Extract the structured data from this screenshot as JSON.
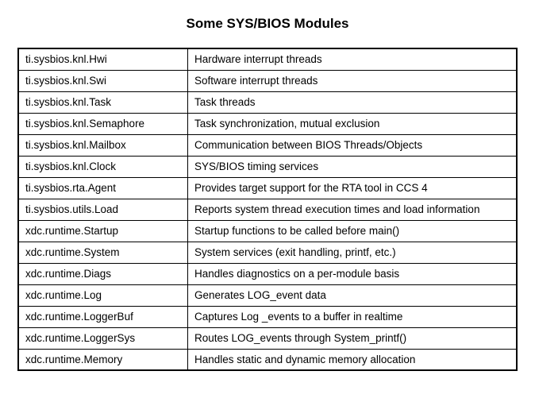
{
  "title": "Some SYS/BIOS Modules",
  "table": {
    "border_color": "#000000",
    "outer_border_width": 2,
    "inner_border_width": 1,
    "background_color": "#ffffff",
    "text_color": "#000000",
    "font_size": 13.5,
    "cell_padding": "5px 8px",
    "column_widths": [
      "34%",
      "66%"
    ],
    "rows": [
      {
        "module": "ti.sysbios.knl.Hwi",
        "description": "Hardware interrupt threads"
      },
      {
        "module": "ti.sysbios.knl.Swi",
        "description": "Software interrupt threads"
      },
      {
        "module": "ti.sysbios.knl.Task",
        "description": "Task threads"
      },
      {
        "module": "ti.sysbios.knl.Semaphore",
        "description": "Task synchronization, mutual exclusion"
      },
      {
        "module": "ti.sysbios.knl.Mailbox",
        "description": "Communication between BIOS Threads/Objects"
      },
      {
        "module": "ti.sysbios.knl.Clock",
        "description": "SYS/BIOS timing services"
      },
      {
        "module": "ti.sysbios.rta.Agent",
        "description": "Provides target support for the RTA tool in CCS 4"
      },
      {
        "module": "ti.sysbios.utils.Load",
        "description": "Reports system thread execution times and load information"
      },
      {
        "module": "xdc.runtime.Startup",
        "description": "Startup functions to be called before main()"
      },
      {
        "module": "xdc.runtime.System",
        "description": "System services (exit handling, printf, etc.)"
      },
      {
        "module": "xdc.runtime.Diags",
        "description": "Handles diagnostics on a per-module basis"
      },
      {
        "module": "xdc.runtime.Log",
        "description": "Generates LOG_event data"
      },
      {
        "module": "xdc.runtime.LoggerBuf",
        "description": "Captures Log _events to a buffer in realtime"
      },
      {
        "module": "xdc.runtime.LoggerSys",
        "description": "Routes LOG_events through System_printf()"
      },
      {
        "module": "xdc.runtime.Memory",
        "description": "Handles static and dynamic memory allocation"
      }
    ]
  }
}
